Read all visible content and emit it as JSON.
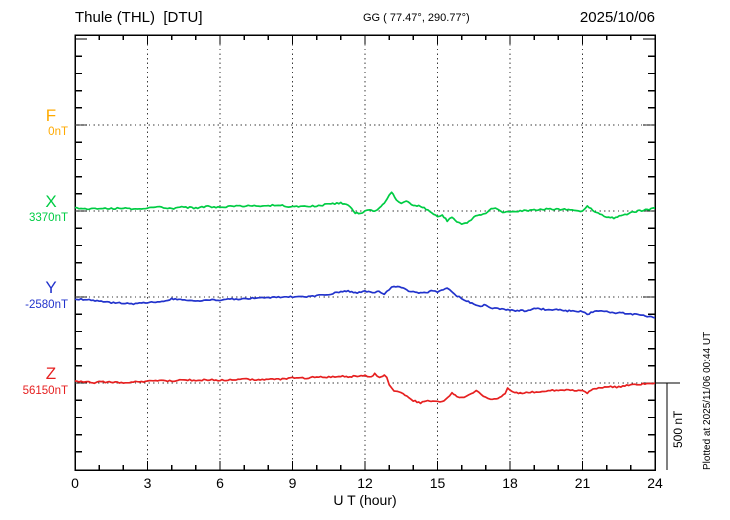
{
  "header": {
    "station_title": "Thule (THL)  [DTU]",
    "coords": "GG ( 77.47°, 290.77°)",
    "date": "2025/10/06"
  },
  "plot": {
    "xlabel": "U T (hour)",
    "x_ticks": [
      0,
      3,
      6,
      9,
      12,
      15,
      18,
      21,
      24
    ],
    "scale_bar_label": "500 nT",
    "plotted_at": "Plotted at 2025/11/06 00:44 UT",
    "channels": [
      {
        "name": "F",
        "base_label": "0nT",
        "color": "#FFAA00"
      },
      {
        "name": "X",
        "base_label": "3370nT",
        "color": "#00CC44"
      },
      {
        "name": "Y",
        "base_label": "-2580nT",
        "color": "#2233CC"
      },
      {
        "name": "Z",
        "base_label": "56150nT",
        "color": "#E62020"
      }
    ]
  },
  "chart_data": {
    "type": "line",
    "title": "Thule (THL) [DTU] magnetogram",
    "subtitle": "GG ( 77.47°, 290.77°)",
    "date": "2025/10/06",
    "xlabel": "U T (hour)",
    "xlim": [
      0,
      24
    ],
    "x_major_ticks": [
      0,
      3,
      6,
      9,
      12,
      15,
      18,
      21,
      24
    ],
    "grid": "dotted, vertical every 3 h, horizontal at each channel baseline",
    "nT_per_minor_div": 100,
    "scale_bar_nT": 500,
    "plotted_at": "Plotted at 2025/11/06 00:44 UT",
    "series": [
      {
        "name": "F",
        "baseline_label": "0nT",
        "color": "#FFAA00",
        "units": "nT deviation from baseline",
        "points": []
      },
      {
        "name": "X",
        "baseline_label": "3370nT",
        "color": "#00CC44",
        "units": "nT deviation from baseline",
        "points": [
          [
            0,
            17
          ],
          [
            0.5,
            11
          ],
          [
            1,
            17
          ],
          [
            1.5,
            14
          ],
          [
            2,
            17
          ],
          [
            2.5,
            9
          ],
          [
            3,
            17
          ],
          [
            3.5,
            23
          ],
          [
            4,
            14
          ],
          [
            4.5,
            23
          ],
          [
            5,
            17
          ],
          [
            5.5,
            26
          ],
          [
            6,
            20
          ],
          [
            6.5,
            29
          ],
          [
            7,
            29
          ],
          [
            7.5,
            29
          ],
          [
            8,
            32
          ],
          [
            8.5,
            34
          ],
          [
            9,
            23
          ],
          [
            9.5,
            29
          ],
          [
            10,
            29
          ],
          [
            10.5,
            40
          ],
          [
            11,
            46
          ],
          [
            11.3,
            34
          ],
          [
            11.6,
            -11
          ],
          [
            11.8,
            -17
          ],
          [
            12,
            0
          ],
          [
            12.2,
            11
          ],
          [
            12.4,
            0
          ],
          [
            12.6,
            17
          ],
          [
            12.8,
            46
          ],
          [
            13,
            92
          ],
          [
            13.1,
            109
          ],
          [
            13.3,
            63
          ],
          [
            13.5,
            40
          ],
          [
            13.7,
            57
          ],
          [
            14,
            34
          ],
          [
            14.3,
            29
          ],
          [
            14.6,
            6
          ],
          [
            15,
            -29
          ],
          [
            15.2,
            -23
          ],
          [
            15.4,
            -57
          ],
          [
            15.6,
            -34
          ],
          [
            15.8,
            -63
          ],
          [
            16,
            -80
          ],
          [
            16.3,
            -63
          ],
          [
            16.5,
            -34
          ],
          [
            16.8,
            -23
          ],
          [
            17,
            -11
          ],
          [
            17.3,
            17
          ],
          [
            17.5,
            11
          ],
          [
            17.7,
            -11
          ],
          [
            18,
            -6
          ],
          [
            18.5,
            0
          ],
          [
            19,
            6
          ],
          [
            19.5,
            11
          ],
          [
            20,
            11
          ],
          [
            20.5,
            6
          ],
          [
            21,
            0
          ],
          [
            21.2,
            29
          ],
          [
            21.5,
            -6
          ],
          [
            21.8,
            -23
          ],
          [
            22,
            -34
          ],
          [
            22.3,
            -40
          ],
          [
            22.6,
            -29
          ],
          [
            23,
            -11
          ],
          [
            23.3,
            0
          ],
          [
            23.6,
            6
          ],
          [
            24,
            17
          ]
        ]
      },
      {
        "name": "Y",
        "baseline_label": "-2580nT",
        "color": "#2233CC",
        "units": "nT deviation from baseline",
        "points": [
          [
            0,
            -11
          ],
          [
            0.5,
            -17
          ],
          [
            1,
            -23
          ],
          [
            1.5,
            -34
          ],
          [
            2,
            -34
          ],
          [
            2.5,
            -40
          ],
          [
            3,
            -34
          ],
          [
            3.5,
            -29
          ],
          [
            4,
            -11
          ],
          [
            4.3,
            -11
          ],
          [
            4.6,
            -23
          ],
          [
            5,
            -23
          ],
          [
            5.5,
            -17
          ],
          [
            6,
            -17
          ],
          [
            6.5,
            -11
          ],
          [
            7,
            -11
          ],
          [
            7.5,
            -6
          ],
          [
            8,
            -6
          ],
          [
            8.5,
            0
          ],
          [
            9,
            0
          ],
          [
            9.5,
            0
          ],
          [
            10,
            6
          ],
          [
            10.5,
            17
          ],
          [
            11,
            29
          ],
          [
            11.3,
            34
          ],
          [
            11.6,
            23
          ],
          [
            12,
            34
          ],
          [
            12.3,
            23
          ],
          [
            12.5,
            34
          ],
          [
            12.8,
            17
          ],
          [
            13,
            46
          ],
          [
            13.2,
            63
          ],
          [
            13.5,
            57
          ],
          [
            13.8,
            34
          ],
          [
            14,
            29
          ],
          [
            14.3,
            23
          ],
          [
            14.6,
            29
          ],
          [
            14.8,
            40
          ],
          [
            15,
            29
          ],
          [
            15.4,
            52
          ],
          [
            15.6,
            34
          ],
          [
            15.8,
            6
          ],
          [
            16,
            -6
          ],
          [
            16.2,
            -23
          ],
          [
            16.5,
            -40
          ],
          [
            16.7,
            -52
          ],
          [
            17,
            -46
          ],
          [
            17.2,
            -63
          ],
          [
            17.5,
            -69
          ],
          [
            18,
            -75
          ],
          [
            18.3,
            -80
          ],
          [
            18.6,
            -80
          ],
          [
            19,
            -69
          ],
          [
            19.3,
            -69
          ],
          [
            19.6,
            -75
          ],
          [
            20,
            -75
          ],
          [
            20.3,
            -80
          ],
          [
            20.6,
            -80
          ],
          [
            21,
            -86
          ],
          [
            21.2,
            -103
          ],
          [
            21.5,
            -80
          ],
          [
            21.8,
            -80
          ],
          [
            22,
            -86
          ],
          [
            22.3,
            -92
          ],
          [
            22.6,
            -92
          ],
          [
            23,
            -98
          ],
          [
            23.3,
            -103
          ],
          [
            23.6,
            -109
          ],
          [
            24,
            -121
          ]
        ]
      },
      {
        "name": "Z",
        "baseline_label": "56150nT",
        "color": "#E62020",
        "units": "nT deviation from baseline",
        "points": [
          [
            0,
            11
          ],
          [
            0.5,
            6
          ],
          [
            0.8,
            0
          ],
          [
            1,
            6
          ],
          [
            1.5,
            6
          ],
          [
            2,
            0
          ],
          [
            2.5,
            6
          ],
          [
            3,
            11
          ],
          [
            3.5,
            17
          ],
          [
            4,
            11
          ],
          [
            4.5,
            17
          ],
          [
            5,
            17
          ],
          [
            5.5,
            17
          ],
          [
            6,
            17
          ],
          [
            6.5,
            17
          ],
          [
            7,
            23
          ],
          [
            7.5,
            17
          ],
          [
            8,
            23
          ],
          [
            8.5,
            23
          ],
          [
            9,
            29
          ],
          [
            9.5,
            29
          ],
          [
            10,
            34
          ],
          [
            10.5,
            34
          ],
          [
            11,
            40
          ],
          [
            11.3,
            34
          ],
          [
            11.6,
            40
          ],
          [
            12,
            46
          ],
          [
            12.2,
            34
          ],
          [
            12.4,
            52
          ],
          [
            12.6,
            34
          ],
          [
            12.8,
            46
          ],
          [
            12.9,
            29
          ],
          [
            13,
            -11
          ],
          [
            13.2,
            -46
          ],
          [
            13.5,
            -57
          ],
          [
            13.8,
            -86
          ],
          [
            14,
            -103
          ],
          [
            14.3,
            -115
          ],
          [
            14.6,
            -103
          ],
          [
            14.8,
            -109
          ],
          [
            15,
            -103
          ],
          [
            15.2,
            -109
          ],
          [
            15.5,
            -75
          ],
          [
            15.6,
            -57
          ],
          [
            15.8,
            -80
          ],
          [
            16,
            -86
          ],
          [
            16.2,
            -75
          ],
          [
            16.4,
            -63
          ],
          [
            16.6,
            -40
          ],
          [
            16.8,
            -69
          ],
          [
            17,
            -86
          ],
          [
            17.2,
            -98
          ],
          [
            17.5,
            -92
          ],
          [
            17.8,
            -63
          ],
          [
            17.9,
            -29
          ],
          [
            18,
            -40
          ],
          [
            18.2,
            -57
          ],
          [
            18.5,
            -57
          ],
          [
            19,
            -52
          ],
          [
            19.5,
            -46
          ],
          [
            20,
            -40
          ],
          [
            20.5,
            -40
          ],
          [
            21,
            -46
          ],
          [
            21.2,
            -57
          ],
          [
            21.5,
            -34
          ],
          [
            22,
            -23
          ],
          [
            22.5,
            -23
          ],
          [
            23,
            -11
          ],
          [
            23.5,
            -6
          ],
          [
            24,
            0
          ]
        ]
      }
    ]
  }
}
